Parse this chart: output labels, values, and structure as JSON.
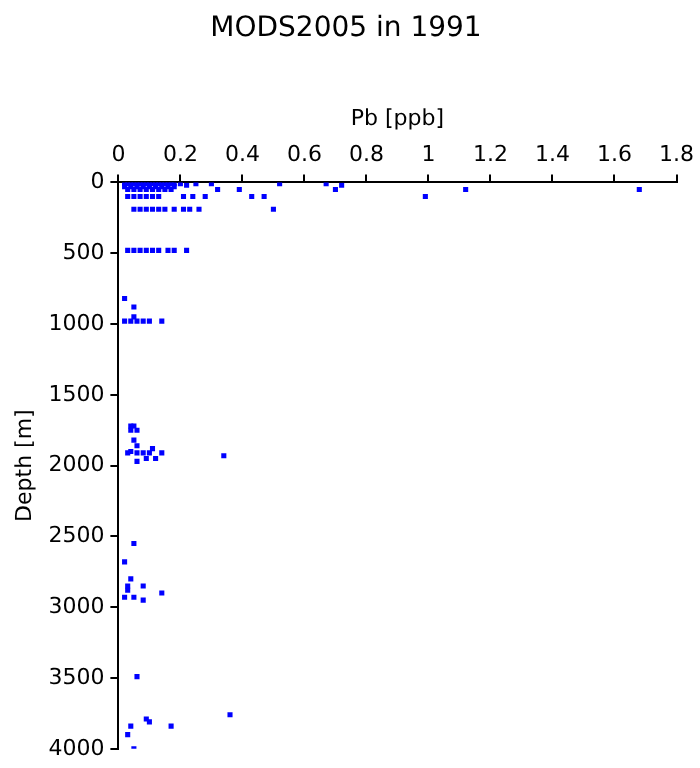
{
  "chart_data": {
    "type": "scatter",
    "title": "MODS2005 in 1991",
    "xlabel": "Pb [ppb]",
    "ylabel": "Depth [m]",
    "xlim": [
      0,
      1.8
    ],
    "xticks": [
      0,
      0.2,
      0.4,
      0.6,
      0.8,
      1,
      1.2,
      1.4,
      1.6,
      1.8
    ],
    "ylim": [
      4000,
      0
    ],
    "yticks": [
      0,
      500,
      1000,
      1500,
      2000,
      2500,
      3000,
      3500,
      4000
    ],
    "grid": false,
    "legend": false,
    "marker": "square",
    "series": [
      {
        "color": "#0000ff",
        "x": [
          0.02,
          0.03,
          0.04,
          0.05,
          0.06,
          0.07,
          0.08,
          0.09,
          0.1,
          0.11,
          0.12,
          0.13,
          0.14,
          0.15,
          0.16,
          0.17,
          0.18,
          0.02,
          0.04,
          0.06,
          0.08,
          0.1,
          0.12,
          0.14,
          0.16,
          0.18,
          0.03,
          0.05,
          0.07,
          0.09,
          0.11,
          0.13,
          0.15,
          0.17,
          0.2,
          0.22,
          0.25,
          0.3,
          0.32,
          0.39,
          0.52,
          0.67,
          0.7,
          0.72,
          0.99,
          1.12,
          1.68,
          0.43,
          0.47,
          0.21,
          0.24,
          0.28,
          0.03,
          0.05,
          0.07,
          0.09,
          0.11,
          0.13,
          0.05,
          0.07,
          0.09,
          0.11,
          0.13,
          0.15,
          0.18,
          0.21,
          0.23,
          0.26,
          0.5,
          0.03,
          0.05,
          0.07,
          0.09,
          0.11,
          0.13,
          0.16,
          0.18,
          0.22,
          0.02,
          0.05,
          0.05,
          0.02,
          0.04,
          0.06,
          0.08,
          0.1,
          0.14,
          0.04,
          0.05,
          0.04,
          0.06,
          0.05,
          0.06,
          0.04,
          0.11,
          0.03,
          0.06,
          0.08,
          0.1,
          0.14,
          0.34,
          0.09,
          0.12,
          0.06,
          0.05,
          0.02,
          0.04,
          0.03,
          0.08,
          0.03,
          0.14,
          0.02,
          0.05,
          0.08,
          0.06,
          0.36,
          0.09,
          0.1,
          0.04,
          0.17,
          0.03,
          0.05
        ],
        "values": [
          10,
          10,
          10,
          10,
          10,
          10,
          10,
          10,
          10,
          10,
          10,
          10,
          10,
          10,
          10,
          10,
          10,
          30,
          30,
          30,
          30,
          30,
          30,
          30,
          30,
          30,
          50,
          50,
          50,
          50,
          50,
          50,
          50,
          50,
          10,
          20,
          10,
          10,
          50,
          50,
          10,
          10,
          50,
          20,
          100,
          50,
          50,
          100,
          100,
          100,
          100,
          100,
          100,
          100,
          100,
          100,
          100,
          100,
          190,
          190,
          190,
          190,
          190,
          190,
          190,
          190,
          190,
          190,
          190,
          480,
          480,
          480,
          480,
          480,
          480,
          480,
          480,
          480,
          820,
          880,
          950,
          980,
          980,
          980,
          980,
          980,
          980,
          1720,
          1720,
          1750,
          1750,
          1820,
          1860,
          1900,
          1880,
          1910,
          1910,
          1910,
          1910,
          1910,
          1930,
          1950,
          1950,
          1970,
          2550,
          2680,
          2800,
          2850,
          2850,
          2880,
          2900,
          2930,
          2930,
          2950,
          3490,
          3760,
          3790,
          3810,
          3840,
          3840,
          3900,
          4000
        ]
      }
    ]
  }
}
